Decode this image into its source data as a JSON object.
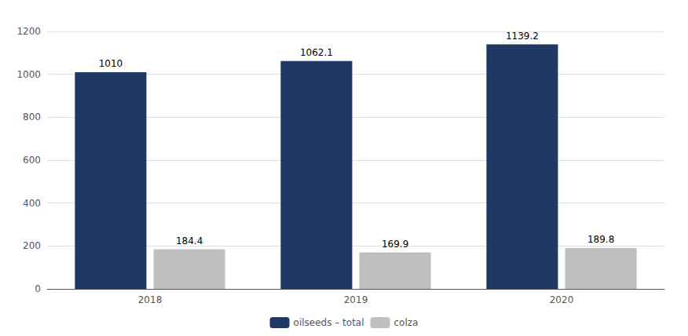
{
  "chart_data": {
    "type": "bar",
    "categories": [
      "2018",
      "2019",
      "2020"
    ],
    "series": [
      {
        "name": "oilseeds – total",
        "color": "#1F3864",
        "values": [
          1010,
          1062.1,
          1139.2
        ]
      },
      {
        "name": "colza",
        "color": "#BFBFBF",
        "values": [
          184.4,
          169.9,
          189.8
        ]
      }
    ],
    "ylim": [
      0,
      1200
    ],
    "yticks": [
      0,
      200,
      400,
      600,
      800,
      1000,
      1200
    ],
    "grid": true,
    "legend": "bottom",
    "data_labels": true
  }
}
